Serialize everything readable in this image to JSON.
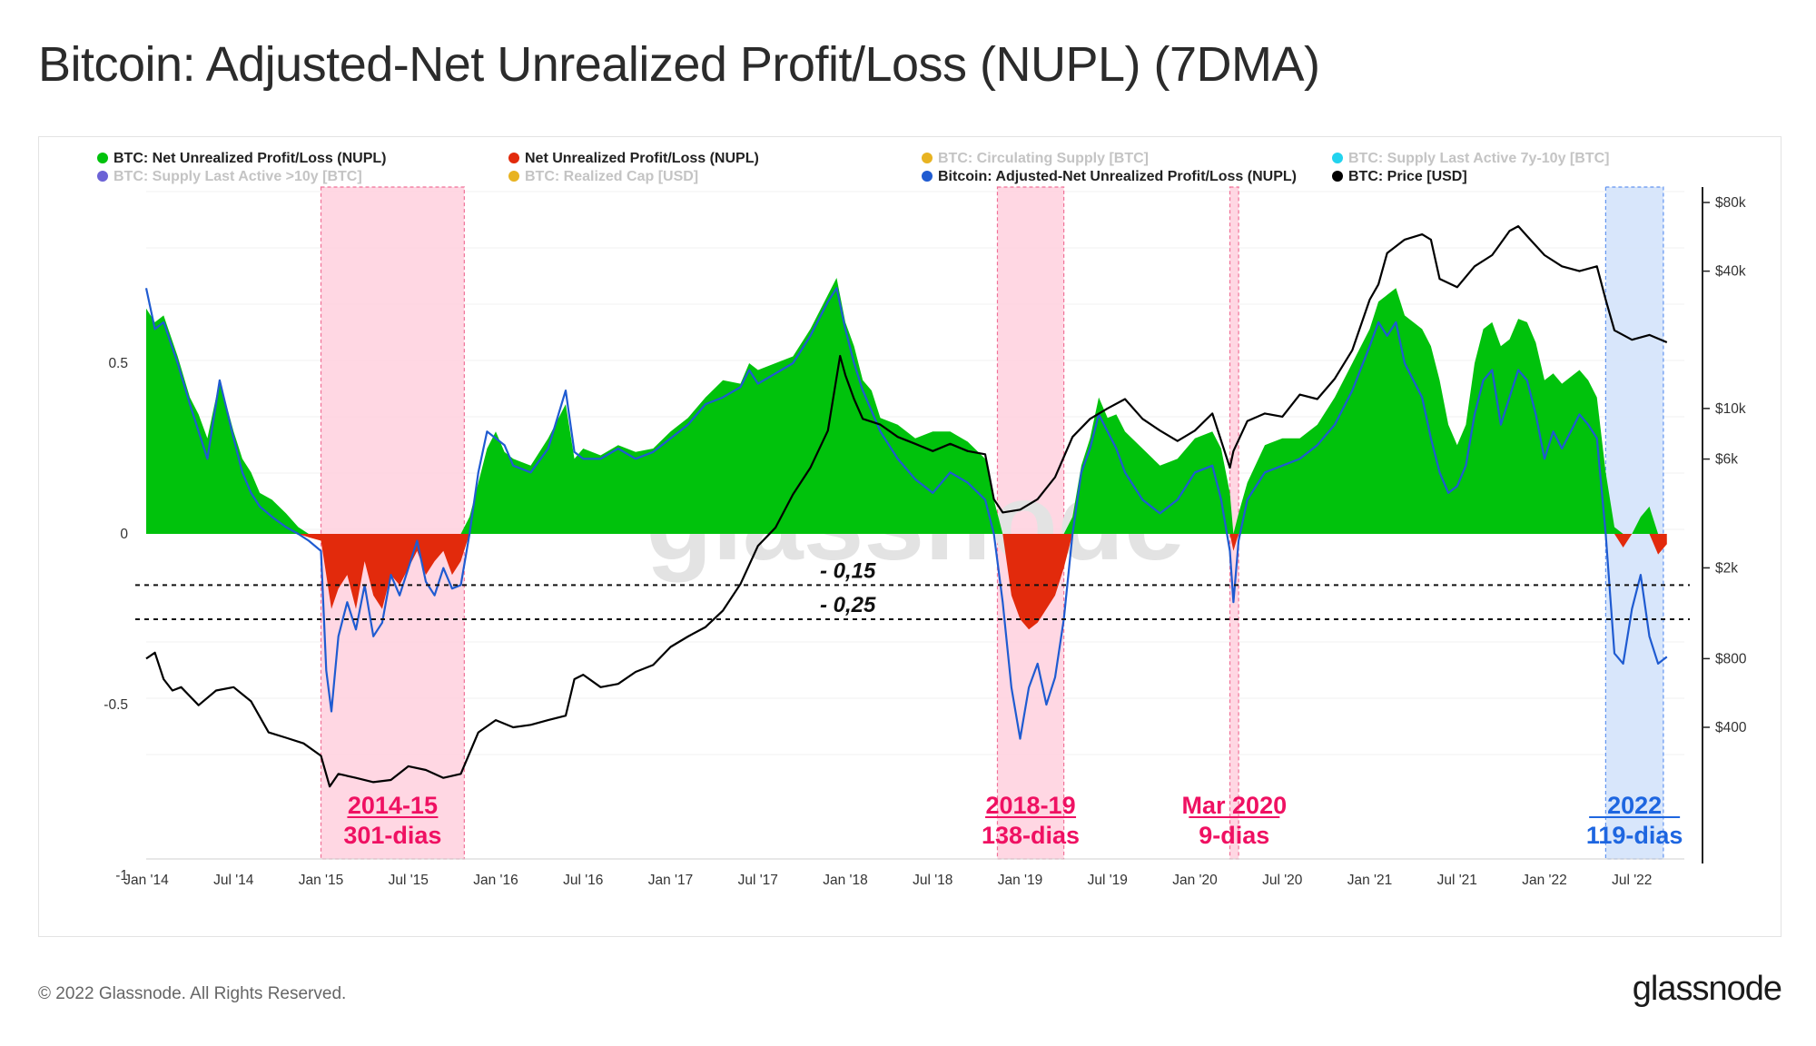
{
  "title": "Bitcoin: Adjusted-Net Unrealized Profit/Loss (NUPL) (7DMA)",
  "footer": {
    "copyright": "© 2022 Glassnode. All Rights Reserved.",
    "logo": "glassnode"
  },
  "colors": {
    "nupl_pos": "#00c20c",
    "nupl_neg": "#e22a0c",
    "adj": "#1f5bd1",
    "price": "#000000",
    "bear_shade": "#ffd5e2",
    "bear_border": "#f06a92",
    "cur_shade": "#d6e5fb",
    "cur_border": "#5a8ff0",
    "bear_text": "#ef1162",
    "cur_text": "#1e66e0"
  },
  "chart_data": {
    "type": "area",
    "title": "Bitcoin: Adjusted-Net Unrealized Profit/Loss (NUPL) (7DMA)",
    "legend": [
      {
        "label": "BTC: Net Unrealized Profit/Loss (NUPL)",
        "color": "#00c20c",
        "muted": false
      },
      {
        "label": "Net Unrealized Profit/Loss (NUPL)",
        "color": "#e22a0c",
        "muted": false
      },
      {
        "label": "BTC: Circulating Supply [BTC]",
        "color": "#e8b321",
        "muted": true
      },
      {
        "label": "BTC: Supply Last Active 7y-10y [BTC]",
        "color": "#22d3ee",
        "muted": true
      },
      {
        "label": "BTC: Supply Last Active >10y [BTC]",
        "color": "#6c63d6",
        "muted": true
      },
      {
        "label": "BTC: Realized Cap [USD]",
        "color": "#e8b321",
        "muted": true
      },
      {
        "label": "Bitcoin: Adjusted-Net Unrealized Profit/Loss (NUPL)",
        "color": "#1f5bd1",
        "muted": false
      },
      {
        "label": "BTC: Price [USD]",
        "color": "#000000",
        "muted": false
      }
    ],
    "x_ticks": [
      "Jan '14",
      "Jul '14",
      "Jan '15",
      "Jul '15",
      "Jan '16",
      "Jul '16",
      "Jan '17",
      "Jul '17",
      "Jan '18",
      "Jul '18",
      "Jan '19",
      "Jul '19",
      "Jan '20",
      "Jul '20",
      "Jan '21",
      "Jul '21",
      "Jan '22",
      "Jul '22"
    ],
    "x_range": [
      2014.0,
      2022.8
    ],
    "y_left": {
      "ticks": [
        0.5,
        0,
        -0.5,
        -1
      ],
      "tick_labels": [
        "0.5",
        "0",
        "-0.5",
        "-1"
      ],
      "range": [
        -1,
        1
      ]
    },
    "y_right": {
      "scale": "log",
      "ticks": [
        80000,
        40000,
        10000,
        6000,
        2000,
        800,
        400
      ],
      "tick_labels": [
        "$80k",
        "$40k",
        "$10k",
        "$6k",
        "$2k",
        "$800",
        "$400"
      ]
    },
    "reference_lines": [
      {
        "y": -0.15,
        "label": "- 0,15"
      },
      {
        "y": -0.25,
        "label": "- 0,25"
      }
    ],
    "periods": [
      {
        "start": 2015.0,
        "end": 2015.82,
        "label": "2014-15",
        "sublabel": "301-dias",
        "kind": "bear"
      },
      {
        "start": 2018.87,
        "end": 2019.25,
        "label": "2018-19",
        "sublabel": "138-dias",
        "kind": "bear"
      },
      {
        "start": 2020.2,
        "end": 2020.25,
        "label": "Mar 2020",
        "sublabel": "9-dias",
        "kind": "bear"
      },
      {
        "start": 2022.35,
        "end": 2022.68,
        "label": "2022",
        "sublabel": "119-dias",
        "kind": "current"
      }
    ],
    "series": [
      {
        "name": "BTC: Net Unrealized Profit/Loss (NUPL)",
        "x": [
          2014.0,
          2014.05,
          2014.1,
          2014.18,
          2014.25,
          2014.3,
          2014.35,
          2014.42,
          2014.5,
          2014.55,
          2014.6,
          2014.65,
          2014.72,
          2014.8,
          2014.87,
          2014.93,
          2015.0,
          2015.03,
          2015.06,
          2015.1,
          2015.15,
          2015.2,
          2015.25,
          2015.3,
          2015.35,
          2015.4,
          2015.45,
          2015.5,
          2015.55,
          2015.6,
          2015.65,
          2015.7,
          2015.75,
          2015.8,
          2015.85,
          2015.9,
          2015.95,
          2016.0,
          2016.05,
          2016.1,
          2016.2,
          2016.3,
          2016.4,
          2016.45,
          2016.5,
          2016.6,
          2016.7,
          2016.8,
          2016.9,
          2017.0,
          2017.1,
          2017.2,
          2017.3,
          2017.4,
          2017.45,
          2017.5,
          2017.6,
          2017.7,
          2017.8,
          2017.9,
          2017.95,
          2018.0,
          2018.05,
          2018.1,
          2018.15,
          2018.2,
          2018.3,
          2018.4,
          2018.5,
          2018.6,
          2018.7,
          2018.8,
          2018.85,
          2018.9,
          2018.95,
          2019.0,
          2019.05,
          2019.1,
          2019.15,
          2019.2,
          2019.25,
          2019.3,
          2019.35,
          2019.4,
          2019.45,
          2019.5,
          2019.55,
          2019.6,
          2019.7,
          2019.8,
          2019.9,
          2020.0,
          2020.1,
          2020.15,
          2020.2,
          2020.22,
          2020.25,
          2020.3,
          2020.4,
          2020.5,
          2020.6,
          2020.7,
          2020.8,
          2020.9,
          2021.0,
          2021.05,
          2021.1,
          2021.15,
          2021.2,
          2021.3,
          2021.35,
          2021.4,
          2021.45,
          2021.5,
          2021.55,
          2021.6,
          2021.65,
          2021.7,
          2021.75,
          2021.8,
          2021.85,
          2021.9,
          2021.95,
          2022.0,
          2022.05,
          2022.1,
          2022.15,
          2022.2,
          2022.25,
          2022.3,
          2022.35,
          2022.4,
          2022.45,
          2022.5,
          2022.55,
          2022.6,
          2022.65,
          2022.7
        ],
        "values": [
          0.66,
          0.62,
          0.64,
          0.52,
          0.4,
          0.35,
          0.28,
          0.45,
          0.3,
          0.22,
          0.18,
          0.12,
          0.1,
          0.06,
          0.02,
          -0.01,
          -0.02,
          -0.12,
          -0.22,
          -0.16,
          -0.12,
          -0.22,
          -0.08,
          -0.18,
          -0.22,
          -0.12,
          -0.15,
          -0.1,
          -0.05,
          -0.12,
          -0.08,
          -0.05,
          -0.12,
          -0.08,
          0.05,
          0.15,
          0.25,
          0.3,
          0.24,
          0.22,
          0.2,
          0.28,
          0.38,
          0.22,
          0.25,
          0.23,
          0.26,
          0.24,
          0.25,
          0.3,
          0.34,
          0.4,
          0.45,
          0.44,
          0.5,
          0.48,
          0.5,
          0.52,
          0.6,
          0.7,
          0.75,
          0.62,
          0.55,
          0.45,
          0.42,
          0.34,
          0.32,
          0.28,
          0.3,
          0.3,
          0.27,
          0.22,
          0.1,
          0.0,
          -0.18,
          -0.25,
          -0.28,
          -0.26,
          -0.22,
          -0.18,
          -0.1,
          0.05,
          0.2,
          0.28,
          0.4,
          0.34,
          0.35,
          0.3,
          0.25,
          0.2,
          0.22,
          0.28,
          0.3,
          0.25,
          0.12,
          -0.05,
          0.06,
          0.15,
          0.26,
          0.28,
          0.28,
          0.32,
          0.4,
          0.5,
          0.6,
          0.68,
          0.7,
          0.72,
          0.64,
          0.6,
          0.55,
          0.45,
          0.32,
          0.26,
          0.32,
          0.5,
          0.6,
          0.62,
          0.55,
          0.57,
          0.63,
          0.62,
          0.56,
          0.45,
          0.47,
          0.44,
          0.46,
          0.48,
          0.45,
          0.4,
          0.18,
          0.02,
          -0.04,
          0.0,
          0.05,
          0.08,
          -0.06,
          -0.03
        ]
      },
      {
        "name": "Bitcoin: Adjusted-Net Unrealized Profit/Loss (NUPL)",
        "x": [
          2014.0,
          2014.05,
          2014.1,
          2014.18,
          2014.25,
          2014.3,
          2014.35,
          2014.42,
          2014.5,
          2014.55,
          2014.6,
          2014.65,
          2014.72,
          2014.8,
          2014.87,
          2014.93,
          2015.0,
          2015.03,
          2015.06,
          2015.1,
          2015.15,
          2015.2,
          2015.25,
          2015.3,
          2015.35,
          2015.4,
          2015.45,
          2015.5,
          2015.55,
          2015.6,
          2015.65,
          2015.7,
          2015.75,
          2015.8,
          2015.85,
          2015.9,
          2015.95,
          2016.0,
          2016.05,
          2016.1,
          2016.2,
          2016.3,
          2016.4,
          2016.45,
          2016.5,
          2016.6,
          2016.7,
          2016.8,
          2016.9,
          2017.0,
          2017.1,
          2017.2,
          2017.3,
          2017.4,
          2017.45,
          2017.5,
          2017.6,
          2017.7,
          2017.8,
          2017.9,
          2017.95,
          2018.0,
          2018.05,
          2018.1,
          2018.15,
          2018.2,
          2018.3,
          2018.4,
          2018.5,
          2018.6,
          2018.7,
          2018.8,
          2018.85,
          2018.9,
          2018.95,
          2019.0,
          2019.05,
          2019.1,
          2019.15,
          2019.2,
          2019.25,
          2019.3,
          2019.35,
          2019.4,
          2019.45,
          2019.5,
          2019.55,
          2019.6,
          2019.7,
          2019.8,
          2019.9,
          2020.0,
          2020.1,
          2020.15,
          2020.2,
          2020.22,
          2020.25,
          2020.3,
          2020.4,
          2020.5,
          2020.6,
          2020.7,
          2020.8,
          2020.9,
          2021.0,
          2021.05,
          2021.1,
          2021.15,
          2021.2,
          2021.3,
          2021.35,
          2021.4,
          2021.45,
          2021.5,
          2021.55,
          2021.6,
          2021.65,
          2021.7,
          2021.75,
          2021.8,
          2021.85,
          2021.9,
          2021.95,
          2022.0,
          2022.05,
          2022.1,
          2022.15,
          2022.2,
          2022.25,
          2022.3,
          2022.35,
          2022.4,
          2022.45,
          2022.5,
          2022.55,
          2022.6,
          2022.65,
          2022.7
        ],
        "values": [
          0.72,
          0.6,
          0.62,
          0.5,
          0.38,
          0.3,
          0.22,
          0.45,
          0.28,
          0.18,
          0.12,
          0.08,
          0.05,
          0.02,
          0.0,
          -0.02,
          -0.05,
          -0.4,
          -0.52,
          -0.3,
          -0.2,
          -0.28,
          -0.15,
          -0.3,
          -0.26,
          -0.12,
          -0.18,
          -0.1,
          -0.02,
          -0.14,
          -0.18,
          -0.1,
          -0.16,
          -0.15,
          0.0,
          0.18,
          0.3,
          0.28,
          0.26,
          0.2,
          0.18,
          0.25,
          0.42,
          0.24,
          0.22,
          0.22,
          0.25,
          0.22,
          0.24,
          0.28,
          0.32,
          0.38,
          0.4,
          0.43,
          0.48,
          0.44,
          0.47,
          0.5,
          0.58,
          0.68,
          0.72,
          0.6,
          0.5,
          0.42,
          0.36,
          0.3,
          0.22,
          0.16,
          0.12,
          0.18,
          0.15,
          0.1,
          0.0,
          -0.2,
          -0.45,
          -0.6,
          -0.45,
          -0.38,
          -0.5,
          -0.42,
          -0.25,
          0.0,
          0.18,
          0.25,
          0.35,
          0.3,
          0.25,
          0.18,
          0.1,
          0.06,
          0.1,
          0.18,
          0.2,
          0.1,
          -0.05,
          -0.2,
          -0.02,
          0.1,
          0.18,
          0.2,
          0.22,
          0.26,
          0.32,
          0.42,
          0.55,
          0.62,
          0.58,
          0.62,
          0.5,
          0.4,
          0.28,
          0.18,
          0.12,
          0.14,
          0.2,
          0.35,
          0.45,
          0.48,
          0.32,
          0.4,
          0.48,
          0.45,
          0.35,
          0.22,
          0.3,
          0.25,
          0.3,
          0.35,
          0.32,
          0.28,
          0.0,
          -0.35,
          -0.38,
          -0.22,
          -0.12,
          -0.3,
          -0.38,
          -0.36
        ]
      },
      {
        "name": "BTC: Price [USD]",
        "x": [
          2014.0,
          2014.05,
          2014.1,
          2014.15,
          2014.2,
          2014.3,
          2014.4,
          2014.5,
          2014.6,
          2014.7,
          2014.8,
          2014.9,
          2015.0,
          2015.05,
          2015.1,
          2015.2,
          2015.3,
          2015.4,
          2015.5,
          2015.6,
          2015.7,
          2015.8,
          2015.9,
          2016.0,
          2016.1,
          2016.2,
          2016.3,
          2016.4,
          2016.45,
          2016.5,
          2016.6,
          2016.7,
          2016.8,
          2016.9,
          2017.0,
          2017.1,
          2017.2,
          2017.3,
          2017.4,
          2017.5,
          2017.6,
          2017.7,
          2017.8,
          2017.9,
          2017.97,
          2018.0,
          2018.05,
          2018.1,
          2018.2,
          2018.3,
          2018.4,
          2018.5,
          2018.6,
          2018.7,
          2018.8,
          2018.85,
          2018.9,
          2019.0,
          2019.1,
          2019.2,
          2019.3,
          2019.4,
          2019.5,
          2019.6,
          2019.7,
          2019.8,
          2019.9,
          2020.0,
          2020.1,
          2020.2,
          2020.22,
          2020.3,
          2020.4,
          2020.5,
          2020.6,
          2020.7,
          2020.8,
          2020.9,
          2021.0,
          2021.05,
          2021.1,
          2021.2,
          2021.3,
          2021.35,
          2021.4,
          2021.5,
          2021.6,
          2021.7,
          2021.8,
          2021.85,
          2021.9,
          2022.0,
          2022.1,
          2022.2,
          2022.3,
          2022.35,
          2022.4,
          2022.5,
          2022.6,
          2022.7
        ],
        "values": [
          800,
          850,
          650,
          580,
          600,
          500,
          580,
          600,
          520,
          380,
          360,
          340,
          300,
          220,
          250,
          240,
          230,
          235,
          270,
          260,
          240,
          250,
          380,
          430,
          400,
          410,
          430,
          450,
          650,
          680,
          600,
          620,
          700,
          750,
          900,
          1000,
          1100,
          1300,
          1700,
          2500,
          3000,
          4200,
          5500,
          8000,
          17000,
          14000,
          11000,
          9000,
          8500,
          7500,
          7000,
          6500,
          7000,
          6500,
          6300,
          4000,
          3500,
          3600,
          4000,
          5000,
          7500,
          9000,
          10000,
          11000,
          9000,
          8000,
          7200,
          8000,
          9500,
          5500,
          6500,
          8800,
          9500,
          9200,
          11500,
          11000,
          13500,
          18000,
          30000,
          35000,
          48000,
          55000,
          58000,
          55000,
          37000,
          34000,
          42000,
          47000,
          60000,
          63000,
          57000,
          47000,
          42000,
          40000,
          42000,
          30000,
          22000,
          20000,
          21000,
          19500
        ]
      }
    ]
  }
}
